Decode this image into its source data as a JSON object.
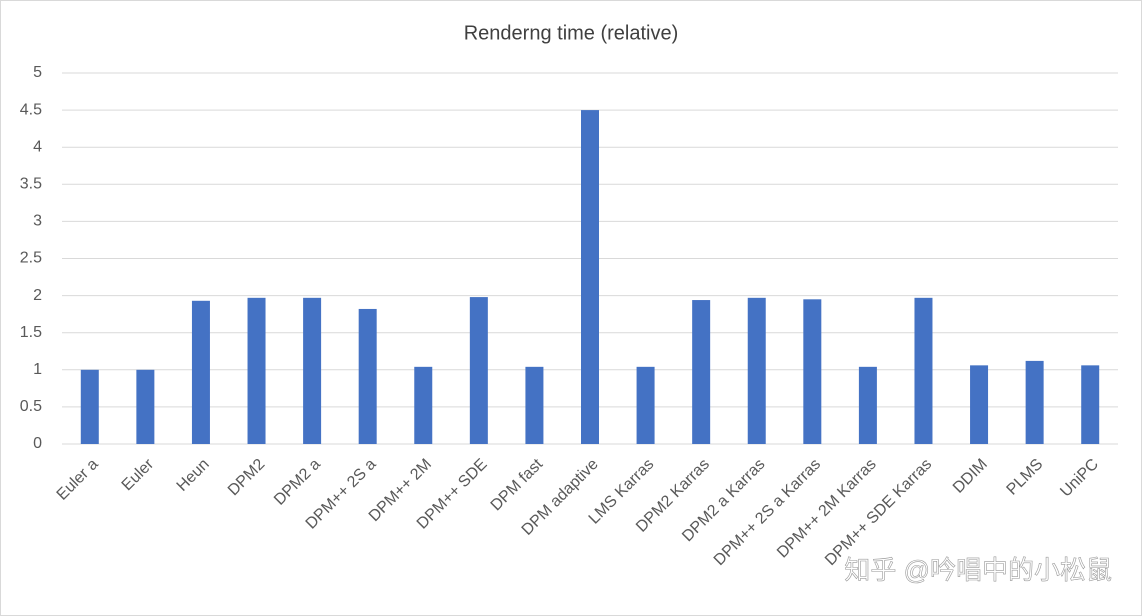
{
  "chart_data": {
    "type": "bar",
    "title": "Renderng time (relative)",
    "categories": [
      "Euler a",
      "Euler",
      "Heun",
      "DPM2",
      "DPM2 a",
      "DPM++ 2S a",
      "DPM++ 2M",
      "DPM++ SDE",
      "DPM fast",
      "DPM adaptive",
      "LMS Karras",
      "DPM2 Karras",
      "DPM2 a Karras",
      "DPM++ 2S a Karras",
      "DPM++ 2M Karras",
      "DPM++ SDE Karras",
      "DDIM",
      "PLMS",
      "UniPC"
    ],
    "values": [
      1.0,
      1.0,
      1.93,
      1.97,
      1.97,
      1.82,
      1.04,
      1.98,
      1.04,
      4.5,
      1.04,
      1.94,
      1.97,
      1.95,
      1.04,
      1.97,
      1.06,
      1.12,
      1.06
    ],
    "color": "#4472c4",
    "ylim": [
      0,
      5
    ],
    "yticks": [
      0,
      0.5,
      1,
      1.5,
      2,
      2.5,
      3,
      3.5,
      4,
      4.5,
      5
    ],
    "grid": true
  },
  "watermark": "知乎 @吟唱中的小松鼠"
}
